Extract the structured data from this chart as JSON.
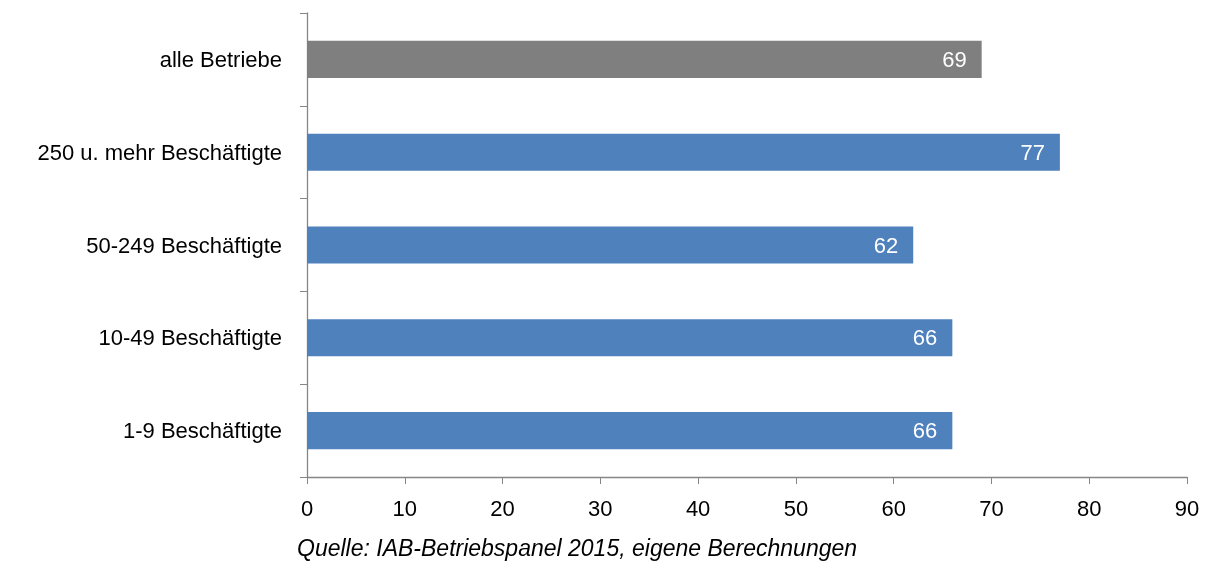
{
  "chart_data": {
    "type": "bar",
    "orientation": "horizontal",
    "categories": [
      "alle Betriebe",
      "250 u. mehr Beschäftigte",
      "50-249 Beschäftigte",
      "10-49 Beschäftigte",
      "1-9 Beschäftigte"
    ],
    "values": [
      69,
      77,
      62,
      66,
      66
    ],
    "colors": [
      "#7f7f7f",
      "#4f81bd",
      "#4f81bd",
      "#4f81bd",
      "#4f81bd"
    ],
    "xlim": [
      0,
      90
    ],
    "xticks": [
      0,
      10,
      20,
      30,
      40,
      50,
      60,
      70,
      80,
      90
    ],
    "grid": false,
    "data_labels": true,
    "annotations": [
      "Quelle: IAB-Betriebspanel 2015, eigene Berechnungen"
    ]
  }
}
